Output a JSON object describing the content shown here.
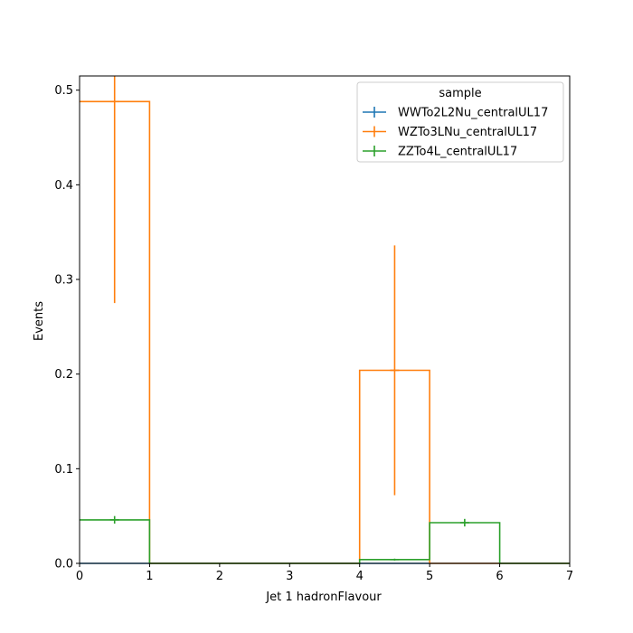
{
  "chart_data": {
    "type": "histogram",
    "xlabel": "Jet 1 hadronFlavour",
    "ylabel": "Events",
    "xlim": [
      0,
      7
    ],
    "ylim": [
      0,
      0.515
    ],
    "xticks": [
      0,
      1,
      2,
      3,
      4,
      5,
      6,
      7
    ],
    "yticks": [
      0.0,
      0.1,
      0.2,
      0.3,
      0.4,
      0.5
    ],
    "xtick_labels": [
      "0",
      "1",
      "2",
      "3",
      "4",
      "5",
      "6",
      "7"
    ],
    "ytick_labels": [
      "0.0",
      "0.1",
      "0.2",
      "0.3",
      "0.4",
      "0.5"
    ],
    "bin_edges": [
      0,
      1,
      2,
      3,
      4,
      5,
      6,
      7
    ],
    "legend": {
      "title": "sample",
      "placement": "top-right"
    },
    "series": [
      {
        "name": "WWTo2L2Nu_centralUL17",
        "color": "#1f77b4",
        "values": [
          0,
          0,
          0,
          0,
          0,
          0,
          0
        ],
        "errors": [
          0,
          0,
          0,
          0,
          0,
          0,
          0
        ]
      },
      {
        "name": "WZTo3LNu_centralUL17",
        "color": "#ff7f0e",
        "values": [
          0.488,
          0,
          0,
          0,
          0.204,
          0,
          0
        ],
        "errors": [
          0.213,
          0,
          0,
          0,
          0.132,
          0,
          0
        ]
      },
      {
        "name": "ZZTo4L_centralUL17",
        "color": "#2ca02c",
        "values": [
          0.046,
          0,
          0,
          0,
          0.004,
          0.043,
          0
        ],
        "errors": [
          0.004,
          0,
          0,
          0,
          0.001,
          0.004,
          0
        ]
      }
    ]
  }
}
